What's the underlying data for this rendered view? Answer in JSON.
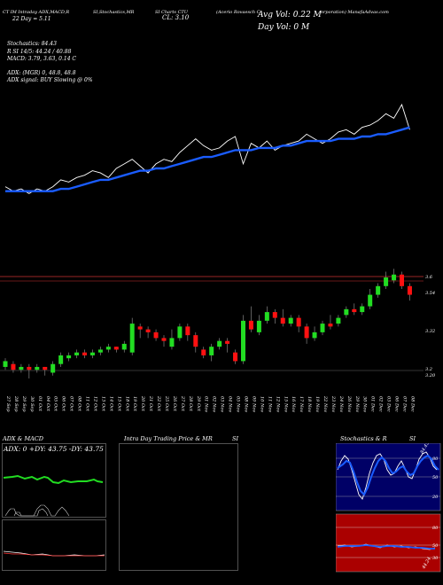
{
  "header": {
    "line1_left": "CT IM Intraday ADX,MACD,R",
    "line1_mid": "SI,Stochastics,MR",
    "line1_right": "SI Charts CTU",
    "line1_far": "(Acerio Rovaesch C",
    "line1_far2": "orporation) ManafaAdvas.com",
    "line2_left": "22  Day  =  5.11",
    "line2_mid": "CL: 3.10",
    "avg_vol": "Avg Vol: 0.22  M",
    "day_vol": "Day Vol: 0   M"
  },
  "indicators": {
    "stoch": "Stochastics: 84.43",
    "rsi": "R                    SI 14/5: 44.24 / 40.88",
    "macd": "MACD: 3.79,  3.63,  0.14  C",
    "adx": "ADX:                                 (MGR) 0,  48.8,  48.8",
    "adx_signal": "ADX  signal:                                     BUY Slowing @ 0%"
  },
  "price_axis": {
    "labels": [
      "3.6",
      "3.54",
      "3.32",
      "3.2",
      "3.20"
    ]
  },
  "date_axis": {
    "labels": [
      "27 Sep",
      "28 Sep",
      "29 Sep",
      "30 Sep",
      "01 Oct",
      "04 Oct",
      "05 Oct",
      "06 Oct",
      "07 Oct",
      "08 Oct",
      "11 Oct",
      "12 Oct",
      "13 Oct",
      "14 Oct",
      "15 Oct",
      "18 Oct",
      "19 Oct",
      "20 Oct",
      "21 Oct",
      "22 Oct",
      "25 Oct",
      "26 Oct",
      "27 Oct",
      "28 Oct",
      "29 Oct",
      "01 Nov",
      "02 Nov",
      "03 Nov",
      "04 Nov",
      "05 Nov",
      "08 Nov",
      "09 Nov",
      "10 Nov",
      "11 Nov",
      "12 Nov",
      "15 Nov",
      "16 Nov",
      "17 Nov",
      "18 Nov",
      "19 Nov",
      "22 Nov",
      "23 Nov",
      "24 Nov",
      "26 Nov",
      "29 Nov",
      "30 Nov",
      "01 Dec",
      "02 Dec",
      "03 Dec",
      "06 Dec",
      "07 Dec",
      "08 Dec"
    ]
  },
  "panels": {
    "adx_title": "ADX  & MACD",
    "adx_readout": "ADX: 0   +DY: 43.75  -DY: 43.75",
    "intraday_title": "Intra  Day Trading Price  & MR",
    "intraday_title2": "SI",
    "stoch_title": "Stochastics & R",
    "stoch_title2": "SI",
    "stoch_levels": [
      "80",
      "50",
      "20"
    ],
    "rsi_levels": [
      "80",
      "50",
      "30"
    ],
    "stoch_readings": [
      "84.43",
      "44.24"
    ]
  },
  "colors": {
    "up": "#22dd22",
    "down": "#ff1111",
    "ma": "#1a5cff",
    "price": "#ffffff",
    "stoch_bg": "#000066",
    "rsi_bg": "#aa0000"
  },
  "chart_data": [
    {
      "type": "line",
      "title": "",
      "series": [
        {
          "values": [
            3.32,
            3.3,
            3.31,
            3.29,
            3.31,
            3.3,
            3.32,
            3.35,
            3.34,
            3.36,
            3.37,
            3.39,
            3.38,
            3.36,
            3.4,
            3.42,
            3.44,
            3.41,
            3.38,
            3.42,
            3.44,
            3.43,
            3.47,
            3.5,
            3.53,
            3.5,
            3.48,
            3.49,
            3.52,
            3.54,
            3.42,
            3.51,
            3.49,
            3.52,
            3.48,
            3.5,
            3.51,
            3.52,
            3.55,
            3.53,
            3.51,
            3.53,
            3.56,
            3.57,
            3.55,
            3.58,
            3.59,
            3.61,
            3.64,
            3.62,
            3.68,
            3.57
          ]
        },
        {
          "values": [
            3.3,
            3.3,
            3.3,
            3.3,
            3.3,
            3.3,
            3.3,
            3.31,
            3.31,
            3.32,
            3.33,
            3.34,
            3.35,
            3.35,
            3.36,
            3.37,
            3.38,
            3.39,
            3.39,
            3.4,
            3.4,
            3.41,
            3.42,
            3.43,
            3.44,
            3.45,
            3.45,
            3.46,
            3.47,
            3.48,
            3.48,
            3.48,
            3.49,
            3.49,
            3.49,
            3.5,
            3.5,
            3.51,
            3.52,
            3.52,
            3.52,
            3.52,
            3.53,
            3.53,
            3.53,
            3.54,
            3.54,
            3.55,
            3.55,
            3.56,
            3.57,
            3.58
          ]
        }
      ]
    },
    {
      "type": "bar",
      "title": "",
      "candles": [
        {
          "o": 3.28,
          "c": 3.3,
          "h": 3.31,
          "l": 3.27
        },
        {
          "o": 3.29,
          "c": 3.27,
          "h": 3.3,
          "l": 3.26
        },
        {
          "o": 3.27,
          "c": 3.28,
          "h": 3.29,
          "l": 3.26
        },
        {
          "o": 3.28,
          "c": 3.27,
          "h": 3.29,
          "l": 3.24
        },
        {
          "o": 3.27,
          "c": 3.28,
          "h": 3.29,
          "l": 3.26
        },
        {
          "o": 3.28,
          "c": 3.27,
          "h": 3.28,
          "l": 3.25
        },
        {
          "o": 3.26,
          "c": 3.29,
          "h": 3.3,
          "l": 3.25
        },
        {
          "o": 3.29,
          "c": 3.32,
          "h": 3.33,
          "l": 3.28
        },
        {
          "o": 3.31,
          "c": 3.32,
          "h": 3.33,
          "l": 3.3
        },
        {
          "o": 3.32,
          "c": 3.33,
          "h": 3.34,
          "l": 3.31
        },
        {
          "o": 3.33,
          "c": 3.32,
          "h": 3.34,
          "l": 3.31
        },
        {
          "o": 3.32,
          "c": 3.33,
          "h": 3.34,
          "l": 3.31
        },
        {
          "o": 3.33,
          "c": 3.34,
          "h": 3.35,
          "l": 3.32
        },
        {
          "o": 3.34,
          "c": 3.35,
          "h": 3.36,
          "l": 3.33
        },
        {
          "o": 3.35,
          "c": 3.34,
          "h": 3.35,
          "l": 3.33
        },
        {
          "o": 3.34,
          "c": 3.36,
          "h": 3.37,
          "l": 3.33
        },
        {
          "o": 3.33,
          "c": 3.43,
          "h": 3.45,
          "l": 3.32
        },
        {
          "o": 3.42,
          "c": 3.41,
          "h": 3.43,
          "l": 3.38
        },
        {
          "o": 3.41,
          "c": 3.4,
          "h": 3.42,
          "l": 3.38
        },
        {
          "o": 3.4,
          "c": 3.38,
          "h": 3.41,
          "l": 3.37
        },
        {
          "o": 3.38,
          "c": 3.37,
          "h": 3.39,
          "l": 3.35
        },
        {
          "o": 3.35,
          "c": 3.38,
          "h": 3.41,
          "l": 3.34
        },
        {
          "o": 3.38,
          "c": 3.42,
          "h": 3.43,
          "l": 3.37
        },
        {
          "o": 3.42,
          "c": 3.39,
          "h": 3.43,
          "l": 3.37
        },
        {
          "o": 3.39,
          "c": 3.35,
          "h": 3.4,
          "l": 3.33
        },
        {
          "o": 3.34,
          "c": 3.32,
          "h": 3.35,
          "l": 3.31
        },
        {
          "o": 3.32,
          "c": 3.35,
          "h": 3.36,
          "l": 3.3
        },
        {
          "o": 3.35,
          "c": 3.37,
          "h": 3.38,
          "l": 3.34
        },
        {
          "o": 3.37,
          "c": 3.36,
          "h": 3.38,
          "l": 3.33
        },
        {
          "o": 3.33,
          "c": 3.3,
          "h": 3.34,
          "l": 3.29
        },
        {
          "o": 3.3,
          "c": 3.44,
          "h": 3.46,
          "l": 3.29
        },
        {
          "o": 3.44,
          "c": 3.41,
          "h": 3.49,
          "l": 3.4
        },
        {
          "o": 3.4,
          "c": 3.44,
          "h": 3.46,
          "l": 3.39
        },
        {
          "o": 3.44,
          "c": 3.47,
          "h": 3.49,
          "l": 3.43
        },
        {
          "o": 3.47,
          "c": 3.45,
          "h": 3.48,
          "l": 3.43
        },
        {
          "o": 3.45,
          "c": 3.43,
          "h": 3.48,
          "l": 3.42
        },
        {
          "o": 3.43,
          "c": 3.45,
          "h": 3.46,
          "l": 3.42
        },
        {
          "o": 3.45,
          "c": 3.42,
          "h": 3.46,
          "l": 3.4
        },
        {
          "o": 3.42,
          "c": 3.38,
          "h": 3.43,
          "l": 3.36
        },
        {
          "o": 3.38,
          "c": 3.4,
          "h": 3.42,
          "l": 3.37
        },
        {
          "o": 3.4,
          "c": 3.43,
          "h": 3.44,
          "l": 3.39
        },
        {
          "o": 3.43,
          "c": 3.42,
          "h": 3.46,
          "l": 3.41
        },
        {
          "o": 3.43,
          "c": 3.45,
          "h": 3.46,
          "l": 3.42
        },
        {
          "o": 3.46,
          "c": 3.48,
          "h": 3.49,
          "l": 3.45
        },
        {
          "o": 3.48,
          "c": 3.47,
          "h": 3.5,
          "l": 3.46
        },
        {
          "o": 3.47,
          "c": 3.49,
          "h": 3.5,
          "l": 3.46
        },
        {
          "o": 3.49,
          "c": 3.53,
          "h": 3.55,
          "l": 3.48
        },
        {
          "o": 3.53,
          "c": 3.56,
          "h": 3.57,
          "l": 3.52
        },
        {
          "o": 3.56,
          "c": 3.59,
          "h": 3.61,
          "l": 3.55
        },
        {
          "o": 3.58,
          "c": 3.6,
          "h": 3.62,
          "l": 3.57
        },
        {
          "o": 3.6,
          "c": 3.56,
          "h": 3.61,
          "l": 3.55
        },
        {
          "o": 3.56,
          "c": 3.53,
          "h": 3.57,
          "l": 3.51
        }
      ]
    }
  ]
}
